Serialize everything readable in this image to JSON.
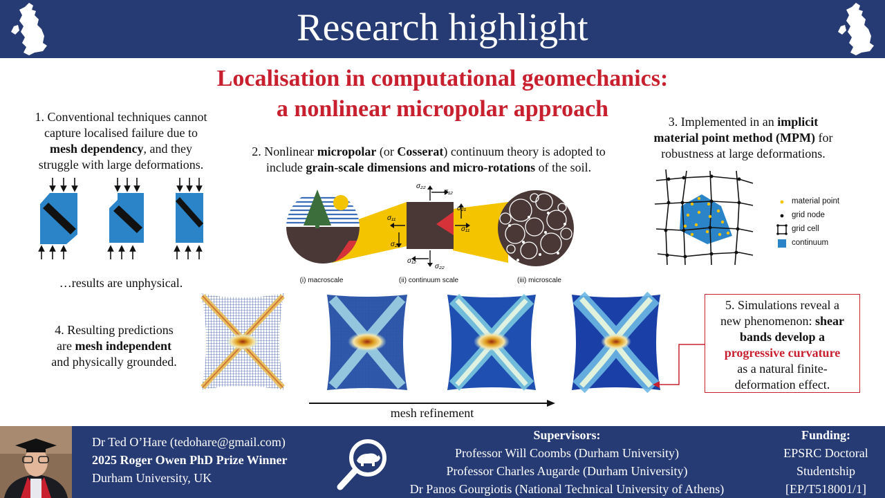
{
  "header": {
    "title": "Research highlight"
  },
  "main_title": {
    "line1": "Localisation in computational geomechanics:",
    "line2": "a nonlinear micropolar approach"
  },
  "point1": {
    "line1": "1. Conventional techniques cannot",
    "line2": "capture localised failure due to",
    "bold": "mesh dependency",
    "line3_rest": ", and they",
    "line4": "struggle with large deformations.",
    "footer": "…results are unphysical."
  },
  "point2": {
    "pre1": "2. Nonlinear ",
    "bold1": "micropolar",
    "mid1": " (or ",
    "bold2": "Cosserat",
    "post1": ") continuum theory is adopted to",
    "pre2": "include ",
    "bold3": "grain-scale dimensions and micro-rotations",
    "post2": " of the soil.",
    "labels": [
      "(i) macroscale",
      "(ii) continuum scale",
      "(iii) microscale"
    ],
    "stress_labels": {
      "s11": "σ11",
      "s12": "σ12",
      "s21": "σ21",
      "s22": "σ22"
    }
  },
  "point3": {
    "pre1": "3. Implemented in an ",
    "bold1": "implicit",
    "bold2": "material point method (MPM)",
    "post2": " for",
    "line3": "robustness at large deformations.",
    "legend": [
      "material point",
      "grid node",
      "grid cell",
      "continuum"
    ]
  },
  "point4": {
    "line1": "4. Resulting predictions",
    "pre2": "are ",
    "bold": "mesh independent",
    "line3": "and physically grounded."
  },
  "point5": {
    "line1": "5. Simulations reveal a",
    "pre2": "new phenomenon: ",
    "bold1": "shear",
    "bold2": "bands develop a",
    "red": "progressive curvature",
    "line5": "as a natural finite-",
    "line6": "deformation effect."
  },
  "mesh_label": "mesh refinement",
  "footer": {
    "name": "Dr Ted O’Hare (tedohare@gmail.com)",
    "prize": "2025 Roger Owen PhD Prize Winner",
    "affiliation": "Durham University, UK",
    "supervisors_heading": "Supervisors:",
    "supervisors": [
      "Professor Will Coombs (Durham University)",
      "Professor Charles Augarde (Durham University)",
      "Dr Panos Gourgiotis (National Technical University of Athens)"
    ],
    "funding_heading": "Funding:",
    "funding": [
      "EPSRC Doctoral",
      "Studentship",
      "[EP/T518001/1]"
    ]
  },
  "colors": {
    "navy": "#263a73",
    "accent_red": "#c8202f",
    "specimen_blue": "#2b84c8",
    "gold": "#f5c400",
    "soil_brown": "#4a3836"
  },
  "icons": [
    "uk-map-icon",
    "search-polar-bear-icon"
  ]
}
